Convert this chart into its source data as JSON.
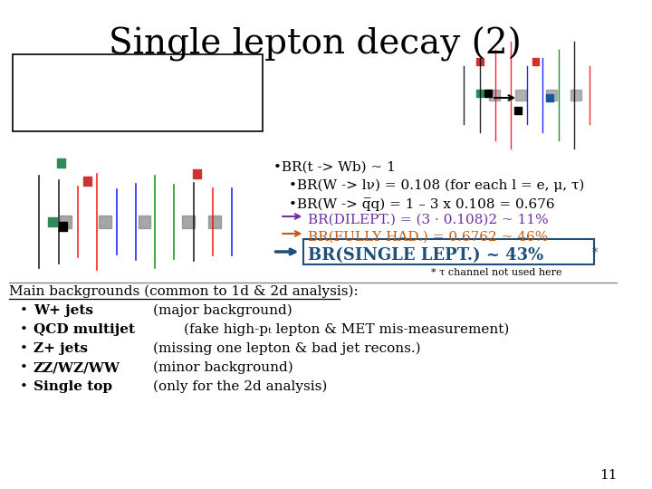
{
  "title": "Single lepton decay (2)",
  "title_fontsize": 28,
  "background_color": "#ffffff",
  "bullet1": "•BR(t -> Wb) ~ 1",
  "bullet2": "•BR(W -> lν) = 0.108 (for each l = e, μ, τ)",
  "bullet3": "•BR(W -> q̅q) = 1 – 3 x 0.108 = 0.676",
  "footnote": "* τ channel not used here",
  "main_bg_title": "Main backgrounds (common to 1d & 2d analysis):",
  "bg_items": [
    [
      "W+ jets",
      "(major background)"
    ],
    [
      "QCD multijet",
      "(fake high-pₜ lepton & MET mis-measurement)"
    ],
    [
      "Z+ jets",
      "(missing one lepton & bad jet recons.)"
    ],
    [
      "ZZ/WZ/WW",
      "(minor background)"
    ],
    [
      "Single top",
      "(only for the 2d analysis)"
    ]
  ],
  "page_number": "11",
  "dilept_color": "#7030a0",
  "fullyhad_color": "#c55a11",
  "single_color": "#1f4e79",
  "box_color": "#1f4e79"
}
